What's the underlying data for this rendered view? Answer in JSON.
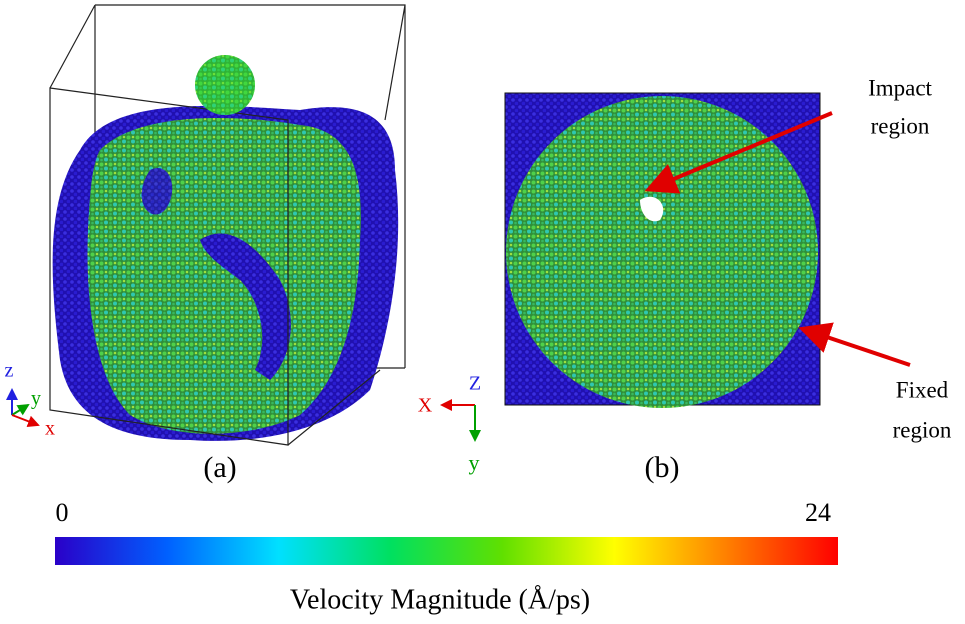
{
  "panels": [
    {
      "label": "(a)",
      "axes": {
        "z": "z",
        "h": "y",
        "v": "x"
      }
    },
    {
      "label": "(b)",
      "axes": {
        "z": "Z",
        "h": "X",
        "v": "y"
      }
    }
  ],
  "annotations": [
    {
      "lines": [
        "Impact",
        "region"
      ]
    },
    {
      "lines": [
        "Fixed",
        "region"
      ]
    }
  ],
  "colorbar": {
    "min": 0,
    "max": 24,
    "label": "Velocity Magnitude (Å/ps)",
    "colors": [
      "#2a00c8",
      "#0060ff",
      "#00e0ff",
      "#00e060",
      "#60e000",
      "#ffff00",
      "#ff8000",
      "#ff0000"
    ]
  }
}
